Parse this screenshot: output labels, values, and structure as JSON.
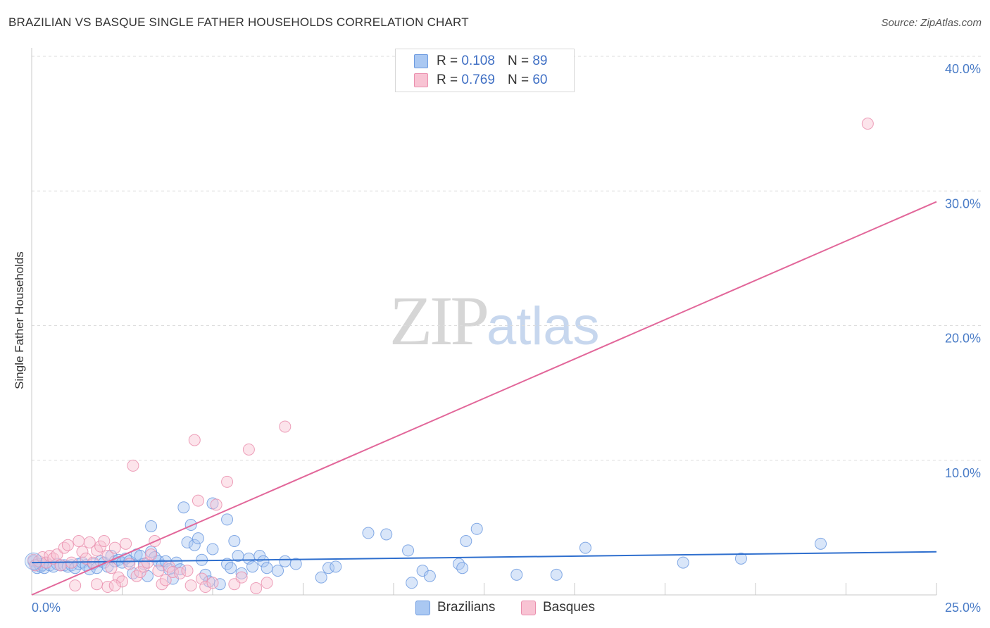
{
  "header": {
    "title": "BRAZILIAN VS BASQUE SINGLE FATHER HOUSEHOLDS CORRELATION CHART",
    "source": "Source: ZipAtlas.com"
  },
  "watermark": {
    "zip": "ZIP",
    "atlas": "atlas"
  },
  "legend_top": {
    "rows": [
      {
        "r_label": "R =",
        "r_value": "0.108",
        "n_label": "N =",
        "n_value": "89",
        "color": "#aac8f2",
        "border": "#6e9be0"
      },
      {
        "r_label": "R =",
        "r_value": "0.769",
        "n_label": "N =",
        "n_value": "60",
        "color": "#f8c3d3",
        "border": "#ea8fae"
      }
    ]
  },
  "legend_bottom": {
    "items": [
      {
        "label": "Brazilians",
        "color": "#aac8f2",
        "border": "#6e9be0"
      },
      {
        "label": "Basques",
        "color": "#f8c3d3",
        "border": "#ea8fae"
      }
    ]
  },
  "chart_data": {
    "type": "scatter",
    "title": "BRAZILIAN VS BASQUE SINGLE FATHER HOUSEHOLDS CORRELATION CHART",
    "xlabel": "",
    "ylabel": "Single Father Households",
    "xlim": [
      0,
      25
    ],
    "ylim": [
      0,
      40
    ],
    "x_tick_labels": [
      {
        "value": 0,
        "label": "0.0%"
      },
      {
        "value": 25,
        "label": "25.0%"
      }
    ],
    "y_tick_labels": [
      {
        "value": 10,
        "label": "10.0%"
      },
      {
        "value": 20,
        "label": "20.0%"
      },
      {
        "value": 30,
        "label": "30.0%"
      },
      {
        "value": 40,
        "label": "40.0%"
      }
    ],
    "x_grid": [
      2.5,
      5,
      7.5,
      10,
      12.5,
      15,
      17.5,
      20,
      22.5,
      25
    ],
    "y_grid": [
      10,
      20,
      30,
      40
    ],
    "series": [
      {
        "name": "Brazilians",
        "color": "#aac8f2",
        "edge": "#6e9be0",
        "line_color": "#2f6fce",
        "trend": {
          "x0": 0,
          "y0": 2.4,
          "x1": 25,
          "y1": 3.2
        },
        "points": [
          [
            0.05,
            2.5
          ],
          [
            0.1,
            2.2
          ],
          [
            0.15,
            2.0
          ],
          [
            0.2,
            2.3
          ],
          [
            0.25,
            2.1
          ],
          [
            0.3,
            2.2
          ],
          [
            0.35,
            2.0
          ],
          [
            0.4,
            2.4
          ],
          [
            0.5,
            2.2
          ],
          [
            0.6,
            2.1
          ],
          [
            0.7,
            2.3
          ],
          [
            0.8,
            2.2
          ],
          [
            0.9,
            2.2
          ],
          [
            1.0,
            2.1
          ],
          [
            1.1,
            2.2
          ],
          [
            1.2,
            2.0
          ],
          [
            1.3,
            2.3
          ],
          [
            1.4,
            2.4
          ],
          [
            1.5,
            2.2
          ],
          [
            1.6,
            1.9
          ],
          [
            1.7,
            2.3
          ],
          [
            1.8,
            2.0
          ],
          [
            1.9,
            2.5
          ],
          [
            2.0,
            2.4
          ],
          [
            2.1,
            2.1
          ],
          [
            2.2,
            2.9
          ],
          [
            2.3,
            2.5
          ],
          [
            2.4,
            2.6
          ],
          [
            2.5,
            2.4
          ],
          [
            2.6,
            2.7
          ],
          [
            2.7,
            2.5
          ],
          [
            2.8,
            1.6
          ],
          [
            2.9,
            3.0
          ],
          [
            3.0,
            2.9
          ],
          [
            3.1,
            2.3
          ],
          [
            3.2,
            1.4
          ],
          [
            3.3,
            3.2
          ],
          [
            3.4,
            2.8
          ],
          [
            3.5,
            2.5
          ],
          [
            3.6,
            2.2
          ],
          [
            3.7,
            2.5
          ],
          [
            3.8,
            1.9
          ],
          [
            3.9,
            1.2
          ],
          [
            4.0,
            2.4
          ],
          [
            4.1,
            1.9
          ],
          [
            4.3,
            3.9
          ],
          [
            4.4,
            5.2
          ],
          [
            4.5,
            3.7
          ],
          [
            4.6,
            4.2
          ],
          [
            4.7,
            2.6
          ],
          [
            4.8,
            1.5
          ],
          [
            4.9,
            1.0
          ],
          [
            5.0,
            3.4
          ],
          [
            5.2,
            0.8
          ],
          [
            5.4,
            2.3
          ],
          [
            5.5,
            2.0
          ],
          [
            5.6,
            4.0
          ],
          [
            5.7,
            2.9
          ],
          [
            5.8,
            1.6
          ],
          [
            6.0,
            2.7
          ],
          [
            6.1,
            2.1
          ],
          [
            6.3,
            2.9
          ],
          [
            6.4,
            2.5
          ],
          [
            6.5,
            2.0
          ],
          [
            6.8,
            1.8
          ],
          [
            7.0,
            2.5
          ],
          [
            7.3,
            2.3
          ],
          [
            8.0,
            1.3
          ],
          [
            8.2,
            2.0
          ],
          [
            8.4,
            2.1
          ],
          [
            9.3,
            4.6
          ],
          [
            9.8,
            4.5
          ],
          [
            10.4,
            3.3
          ],
          [
            10.5,
            0.9
          ],
          [
            10.8,
            1.8
          ],
          [
            11.0,
            1.4
          ],
          [
            11.8,
            2.3
          ],
          [
            11.9,
            2.0
          ],
          [
            12.0,
            4.0
          ],
          [
            12.3,
            4.9
          ],
          [
            13.4,
            1.5
          ],
          [
            14.5,
            1.5
          ],
          [
            15.3,
            3.5
          ],
          [
            18.0,
            2.4
          ],
          [
            19.6,
            2.7
          ],
          [
            21.8,
            3.8
          ],
          [
            4.2,
            6.5
          ],
          [
            5.0,
            6.8
          ],
          [
            5.4,
            5.6
          ],
          [
            3.3,
            5.1
          ]
        ]
      },
      {
        "name": "Basques",
        "color": "#f8c3d3",
        "edge": "#ea8fae",
        "line_color": "#e2679a",
        "trend": {
          "x0": 0,
          "y0": 0.0,
          "x1": 25,
          "y1": 29.2
        },
        "points": [
          [
            0.05,
            2.6
          ],
          [
            0.1,
            2.2
          ],
          [
            0.2,
            2.5
          ],
          [
            0.3,
            2.8
          ],
          [
            0.4,
            2.4
          ],
          [
            0.5,
            2.9
          ],
          [
            0.6,
            2.7
          ],
          [
            0.7,
            3.0
          ],
          [
            0.8,
            2.2
          ],
          [
            0.9,
            3.5
          ],
          [
            1.0,
            3.7
          ],
          [
            1.1,
            2.4
          ],
          [
            1.2,
            0.7
          ],
          [
            1.3,
            4.0
          ],
          [
            1.4,
            3.2
          ],
          [
            1.5,
            2.7
          ],
          [
            1.6,
            3.9
          ],
          [
            1.7,
            2.4
          ],
          [
            1.8,
            3.3
          ],
          [
            1.9,
            3.6
          ],
          [
            2.0,
            4.0
          ],
          [
            2.1,
            2.9
          ],
          [
            2.2,
            2.0
          ],
          [
            2.3,
            3.5
          ],
          [
            2.4,
            1.3
          ],
          [
            2.5,
            1.0
          ],
          [
            2.6,
            3.8
          ],
          [
            2.7,
            2.3
          ],
          [
            2.8,
            9.6
          ],
          [
            2.9,
            1.4
          ],
          [
            3.0,
            1.7
          ],
          [
            3.1,
            2.1
          ],
          [
            3.2,
            2.4
          ],
          [
            3.3,
            3.0
          ],
          [
            3.4,
            4.0
          ],
          [
            3.5,
            1.8
          ],
          [
            3.6,
            0.8
          ],
          [
            3.7,
            1.1
          ],
          [
            3.8,
            2.1
          ],
          [
            3.9,
            1.7
          ],
          [
            4.1,
            1.6
          ],
          [
            4.3,
            1.8
          ],
          [
            4.4,
            0.7
          ],
          [
            4.5,
            11.5
          ],
          [
            4.6,
            7.0
          ],
          [
            4.7,
            1.2
          ],
          [
            4.8,
            0.6
          ],
          [
            5.0,
            0.9
          ],
          [
            5.1,
            6.7
          ],
          [
            5.4,
            8.4
          ],
          [
            5.6,
            0.8
          ],
          [
            5.8,
            1.3
          ],
          [
            6.0,
            10.8
          ],
          [
            6.2,
            0.5
          ],
          [
            6.5,
            0.9
          ],
          [
            7.0,
            12.5
          ],
          [
            1.8,
            0.8
          ],
          [
            2.1,
            0.6
          ],
          [
            2.3,
            0.7
          ],
          [
            23.1,
            35.0
          ]
        ]
      }
    ]
  }
}
